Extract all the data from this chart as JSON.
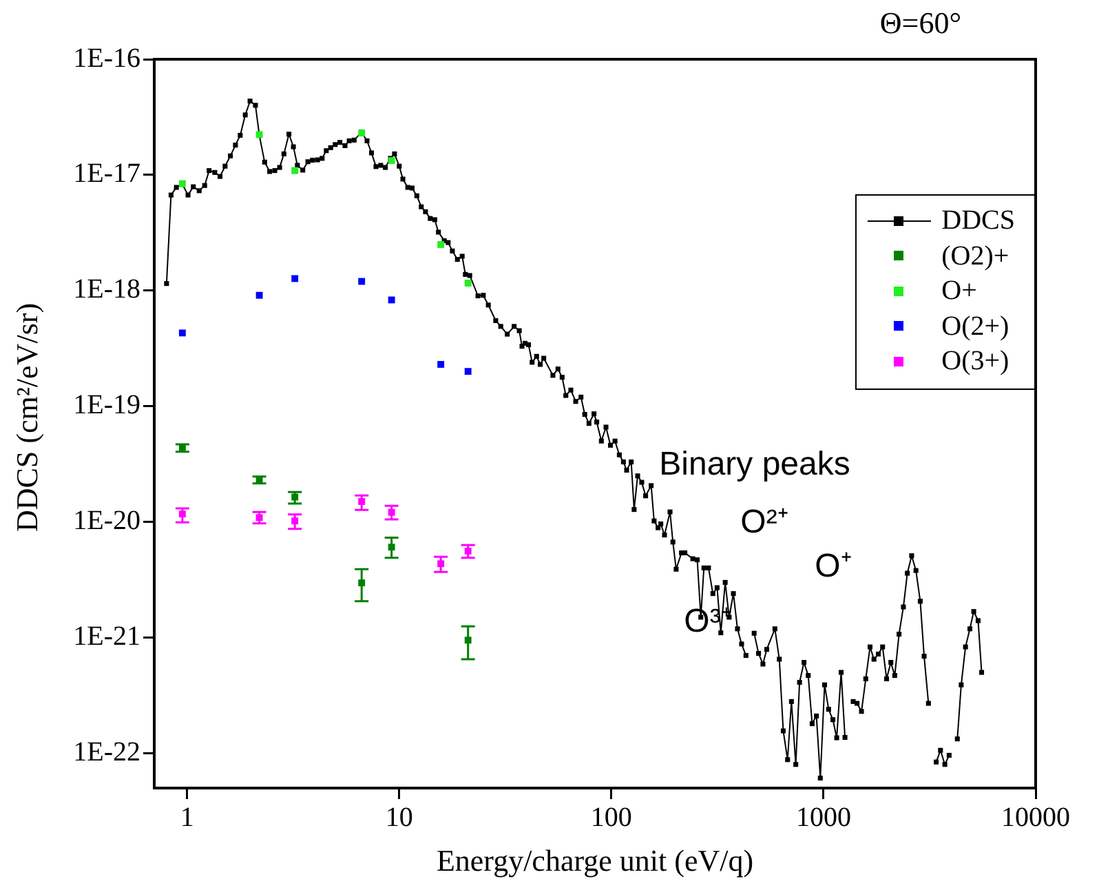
{
  "chart_data": {
    "type": "line",
    "title": "Θ=60°",
    "xlabel": "Energy/charge unit (eV/q)",
    "ylabel": "DDCS (cm²/eV/sr)",
    "log": "xy",
    "xlim": [
      0.7,
      10000
    ],
    "ylim": [
      5e-23,
      1e-16
    ],
    "xticks": [
      1,
      10,
      100,
      1000,
      10000
    ],
    "yticks": [
      {
        "value": 1e-22,
        "label": "1E-22"
      },
      {
        "value": 1e-21,
        "label": "1E-21"
      },
      {
        "value": 1e-20,
        "label": "1E-20"
      },
      {
        "value": 1e-19,
        "label": "1E-19"
      },
      {
        "value": 1e-18,
        "label": "1E-18"
      },
      {
        "value": 1e-17,
        "label": "1E-17"
      },
      {
        "value": 1e-16,
        "label": "1E-16"
      }
    ],
    "grid": false,
    "legend": "top right",
    "marker": "square",
    "annotations": [
      "Binary peaks",
      "O²⁺",
      "O⁺",
      "O³⁺"
    ],
    "series": [
      {
        "name": "DDCS",
        "color": "#000000",
        "line_style": "solid",
        "x": [
          0.8,
          0.84,
          0.89,
          0.95,
          1.01,
          1.07,
          1.14,
          1.21,
          1.27,
          1.35,
          1.43,
          1.51,
          1.6,
          1.69,
          1.78,
          1.88,
          1.98,
          2.1,
          2.19,
          2.32,
          2.45,
          2.59,
          2.73,
          2.86,
          3.02,
          3.17,
          3.31,
          3.51,
          3.71,
          3.9,
          4.12,
          4.33,
          4.53,
          4.75,
          4.99,
          5.25,
          5.55,
          5.81,
          6.13,
          6.65,
          7.05,
          7.4,
          7.77,
          8.18,
          8.6,
          9.09,
          9.5,
          10,
          10.4,
          10.97,
          11.5,
          12.1,
          12.7,
          13.3,
          14,
          14.7,
          15.3,
          16.3,
          17,
          17.8,
          18.8,
          19.8,
          20.5,
          21.5,
          23.5,
          24.9,
          26.3,
          28.5,
          30.1,
          32.3,
          34.8,
          36.8,
          37.9,
          39.2,
          40.7,
          42.3,
          44.4,
          46.2,
          48,
          53,
          56,
          58.6,
          61,
          64.4,
          67.9,
          71.9,
          74.9,
          78.4,
          82.8,
          85.3,
          89.7,
          94.3,
          99,
          104,
          109,
          114,
          118,
          124,
          128,
          133,
          139,
          145,
          154,
          159,
          166,
          171,
          178,
          189,
          195,
          202,
          214,
          222,
          242,
          254,
          264,
          273,
          287,
          301,
          315,
          328,
          344,
          359,
          376,
          393,
          411,
          431,
          452,
          471,
          494,
          518,
          540,
          590,
          619,
          646,
          677,
          706,
          740,
          771,
          809,
          847,
          884,
          926,
          966,
          1012,
          1057,
          1107,
          1154,
          1211,
          1262,
          1322,
          1380,
          1439,
          1510,
          1582,
          1657,
          1729,
          1813,
          1899,
          1983,
          2077,
          2167,
          2270,
          2380,
          2484,
          2603,
          2727,
          2858,
          2980,
          3124,
          3270,
          3398,
          3560,
          3732,
          3910,
          4096,
          4274,
          4457,
          4670,
          4898,
          5107,
          5355,
          5563
        ],
        "values": [
          1.15e-18,
          6.7e-18,
          7.8e-18,
          8.3e-18,
          6.7e-18,
          7.9e-18,
          7.3e-18,
          8.1e-18,
          1.09e-17,
          1.05e-17,
          9.7e-18,
          1.19e-17,
          1.46e-17,
          1.81e-17,
          2.2e-17,
          3.3e-17,
          4.35e-17,
          4e-17,
          2.2e-17,
          1.29e-17,
          1.07e-17,
          1.09e-17,
          1.16e-17,
          1.52e-17,
          2.25e-17,
          1.75e-17,
          1.21e-17,
          1.1e-17,
          1.3e-17,
          1.34e-17,
          1.35e-17,
          1.39e-17,
          1.62e-17,
          1.72e-17,
          1.83e-17,
          1.91e-17,
          1.79e-17,
          1.97e-17,
          2e-17,
          2.34e-17,
          1.97e-17,
          1.55e-17,
          1.18e-17,
          1.21e-17,
          1.16e-17,
          1.39e-17,
          1.52e-17,
          1.19e-17,
          9.2e-18,
          7.8e-18,
          7.7e-18,
          6.6e-18,
          5.3e-18,
          4.8e-18,
          4.2e-18,
          4.1e-18,
          3.2e-18,
          2.7e-18,
          2.6e-18,
          2.2e-18,
          1.86e-18,
          1.98e-18,
          1.38e-18,
          1.35e-18,
          9e-19,
          9.1e-19,
          7.5e-19,
          5.5e-19,
          4.9e-19,
          4.2e-19,
          4.9e-19,
          4.5e-19,
          3.3e-19,
          3.5e-19,
          3.4e-19,
          2.4e-19,
          2.7e-19,
          2.3e-19,
          2.6e-19,
          1.85e-19,
          2.1e-19,
          1.78e-19,
          1.24e-19,
          1.38e-19,
          1.1e-19,
          1.2e-19,
          8.5e-20,
          7.1e-20,
          8.6e-20,
          7.3e-20,
          5e-20,
          6.6e-20,
          4.6e-20,
          5e-20,
          3.8e-20,
          3.3e-20,
          2.8e-20,
          3.3e-20,
          1.28e-20,
          2.5e-20,
          2.2e-20,
          1.68e-20,
          2.06e-20,
          1.02e-20,
          8.9e-21,
          9.6e-21,
          7.7e-21,
          1.22e-20,
          6.7e-21,
          3.9e-21,
          5.4e-21,
          5.4e-21,
          4.8e-21,
          4.7e-21,
          1.5e-21,
          4e-21,
          4e-21,
          2.4e-21,
          2.7e-21,
          1.1e-21,
          3e-21,
          1.5e-21,
          2.4e-21,
          1.19e-21,
          8.8e-22,
          7e-22,
          null,
          1.09e-21,
          7.3e-22,
          5.9e-22,
          7.9e-22,
          1.19e-21,
          6.5e-22,
          1.56e-22,
          8.8e-23,
          2.8e-22,
          8e-23,
          4.1e-22,
          6.1e-22,
          4.7e-22,
          1.8e-22,
          2.1e-22,
          6.1e-23,
          3.9e-22,
          2.4e-22,
          1.95e-22,
          1.36e-22,
          5e-22,
          1.37e-22,
          null,
          2.8e-22,
          2.7e-22,
          2.3e-22,
          4.4e-22,
          8.3e-22,
          6.5e-22,
          7.2e-22,
          8.3e-22,
          4.4e-22,
          6.1e-22,
          4.7e-22,
          1.07e-21,
          1.84e-21,
          3.6e-21,
          5.1e-21,
          3.8e-21,
          2.06e-21,
          6.9e-22,
          2.7e-22,
          null,
          8.4e-23,
          1.06e-22,
          8e-23,
          9.6e-23,
          null,
          1.33e-22,
          3.9e-22,
          8.3e-22,
          1.19e-21,
          1.68e-21,
          1.4e-21,
          5e-22
        ]
      },
      {
        "name": "(O2)+",
        "type": "scatter",
        "color": "#008000",
        "x": [
          0.95,
          2.19,
          3.22,
          6.65,
          9.2,
          15.7,
          21.1
        ],
        "values": [
          4.4e-20,
          2.3e-20,
          1.64e-20,
          2.97e-21,
          6.05e-21,
          null,
          9.5e-22
        ],
        "errors": [
          [
            4.05e-20,
            4.68e-20
          ],
          [
            2.15e-20,
            2.47e-20
          ],
          [
            1.44e-20,
            1.81e-20
          ],
          [
            2.06e-21,
            3.9e-21
          ],
          [
            4.9e-21,
            7.3e-21
          ],
          null,
          [
            6.5e-22,
            1.25e-21
          ]
        ]
      },
      {
        "name": "O+",
        "type": "scatter",
        "color": "#22ee22",
        "x": [
          0.95,
          2.19,
          3.22,
          6.65,
          9.2,
          15.7,
          21.1
        ],
        "values": [
          8.4e-18,
          2.23e-17,
          1.09e-17,
          2.3e-17,
          1.33e-17,
          2.5e-18,
          1.16e-18
        ]
      },
      {
        "name": "O(2+)",
        "type": "scatter",
        "color": "#0000ff",
        "x": [
          0.95,
          2.19,
          3.22,
          6.65,
          9.2,
          15.7,
          21.1
        ],
        "values": [
          4.3e-19,
          9.1e-19,
          1.27e-18,
          1.2e-18,
          8.3e-19,
          2.3e-19,
          2e-19
        ]
      },
      {
        "name": "O(3+)",
        "type": "scatter",
        "color": "#ff00ff",
        "x": [
          0.95,
          2.19,
          3.22,
          6.65,
          9.2,
          15.7,
          21.1
        ],
        "values": [
          1.17e-20,
          1.09e-20,
          1.02e-20,
          1.5e-20,
          1.21e-20,
          4.35e-21,
          5.6e-21
        ],
        "errors": [
          [
            9.9e-21,
            1.31e-20
          ],
          [
            9.7e-21,
            1.22e-20
          ],
          [
            8.7e-21,
            1.16e-20
          ],
          [
            1.27e-20,
            1.69e-20
          ],
          [
            1.05e-20,
            1.38e-20
          ],
          [
            3.7e-21,
            5e-21
          ],
          [
            4.9e-21,
            6.3e-21
          ]
        ]
      }
    ]
  }
}
